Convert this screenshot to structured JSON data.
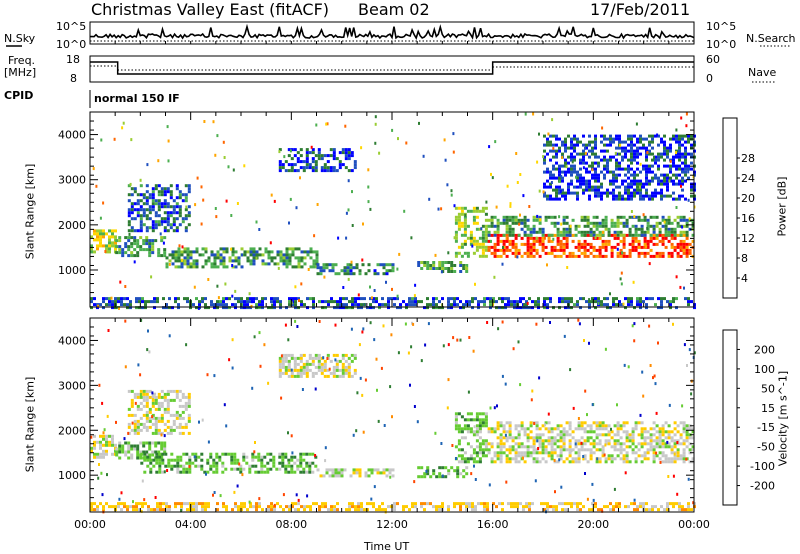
{
  "header": {
    "station": "Christmas Valley East (fitACF)",
    "beam": "Beam 02",
    "date": "17/Feb/2011"
  },
  "left_labels": {
    "nsky": "N.Sky",
    "nsky_top": "10^5",
    "nsky_bottom": "10^0",
    "freq": "Freq.",
    "freq_unit": "[MHz]",
    "freq_top": "18",
    "freq_bottom": "8",
    "cpid": "CPID"
  },
  "right_labels": {
    "nsearch": "N.Search",
    "nsearch_top": "10^5",
    "nsearch_bottom": "10^0",
    "nave": "Nave",
    "nave_top": "60",
    "nave_bottom": "0"
  },
  "cpid_text": "normal 150 IF",
  "colors": {
    "power": [
      "#0000ff",
      "#1f4fbf",
      "#2e7d32",
      "#4caf50",
      "#9acd32",
      "#ffd700",
      "#ffa500",
      "#ff6600",
      "#ff0000"
    ],
    "velocity": [
      "#0000cc",
      "#1e64b4",
      "#2e7d32",
      "#66cc33",
      "#c8c8c8",
      "#ffcc00",
      "#ff8c00",
      "#ff4500",
      "#ff0000"
    ]
  },
  "chart_data": [
    {
      "type": "heatmap",
      "name": "power",
      "ylabel": "Slant Range [km]",
      "yticks": [
        1000,
        2000,
        3000,
        4000
      ],
      "ylim": [
        180,
        4500
      ],
      "colorbar_label": "Power [dB]",
      "colorbar_ticks": [
        4,
        8,
        12,
        16,
        20,
        24,
        28
      ],
      "colorbar_range": [
        0,
        30
      ],
      "echo_regions": [
        {
          "t0": 0.0,
          "t1": 1.0,
          "r0": 1400,
          "r1": 1900,
          "value": 16
        },
        {
          "t0": 1.0,
          "t1": 3.0,
          "r0": 1350,
          "r1": 1750,
          "value": 10
        },
        {
          "t0": 1.5,
          "t1": 4.0,
          "r0": 1900,
          "r1": 2900,
          "value": 6
        },
        {
          "t0": 3.0,
          "t1": 9.0,
          "r0": 1050,
          "r1": 1500,
          "value": 10
        },
        {
          "t0": 9.0,
          "t1": 12.0,
          "r0": 950,
          "r1": 1150,
          "value": 8
        },
        {
          "t0": 13.0,
          "t1": 15.0,
          "r0": 950,
          "r1": 1200,
          "value": 10
        },
        {
          "t0": 7.5,
          "t1": 10.5,
          "r0": 3200,
          "r1": 3700,
          "value": 4
        },
        {
          "t0": 14.5,
          "t1": 15.8,
          "r0": 1300,
          "r1": 2400,
          "value": 14
        },
        {
          "t0": 15.8,
          "t1": 24.0,
          "r0": 1300,
          "r1": 1800,
          "value": 26
        },
        {
          "t0": 15.8,
          "t1": 24.0,
          "r0": 1750,
          "r1": 2200,
          "value": 10
        },
        {
          "t0": 18.0,
          "t1": 24.0,
          "r0": 2600,
          "r1": 4000,
          "value": 4
        },
        {
          "t0": 0.0,
          "t1": 24.0,
          "r0": 200,
          "r1": 400,
          "value": 6
        }
      ]
    },
    {
      "type": "heatmap",
      "name": "velocity",
      "ylabel": "Slant Range [km]",
      "yticks": [
        1000,
        2000,
        3000,
        4000
      ],
      "ylim": [
        180,
        4500
      ],
      "xlabel": "Time UT",
      "xticks": [
        "00:00",
        "04:00",
        "08:00",
        "12:00",
        "16:00",
        "20:00",
        "00:00"
      ],
      "xlim": [
        0,
        24
      ],
      "colorbar_label": "Velocity [m s^-1]",
      "colorbar_ticks": [
        -200,
        -100,
        -50,
        -15,
        15,
        50,
        100,
        200
      ],
      "colorbar_range": [
        -250,
        250
      ],
      "echo_regions": [
        {
          "t0": 0.0,
          "t1": 1.0,
          "r0": 1400,
          "r1": 1900,
          "value": 0
        },
        {
          "t0": 1.0,
          "t1": 3.0,
          "r0": 1350,
          "r1": 1750,
          "value": 30
        },
        {
          "t0": 1.5,
          "t1": 4.0,
          "r0": 1900,
          "r1": 2900,
          "value": 0
        },
        {
          "t0": 2.0,
          "t1": 9.0,
          "r0": 1050,
          "r1": 1500,
          "value": 40
        },
        {
          "t0": 9.0,
          "t1": 12.0,
          "r0": 950,
          "r1": 1150,
          "value": 0
        },
        {
          "t0": 13.0,
          "t1": 15.0,
          "r0": 950,
          "r1": 1200,
          "value": 40
        },
        {
          "t0": 7.5,
          "t1": 10.5,
          "r0": 3200,
          "r1": 3700,
          "value": 0
        },
        {
          "t0": 14.5,
          "t1": 15.8,
          "r0": 1300,
          "r1": 2400,
          "value": 30
        },
        {
          "t0": 15.8,
          "t1": 24.0,
          "r0": 1300,
          "r1": 2200,
          "value": 0
        },
        {
          "t0": 0.0,
          "t1": 24.0,
          "r0": 200,
          "r1": 400,
          "value": -30
        }
      ]
    }
  ]
}
